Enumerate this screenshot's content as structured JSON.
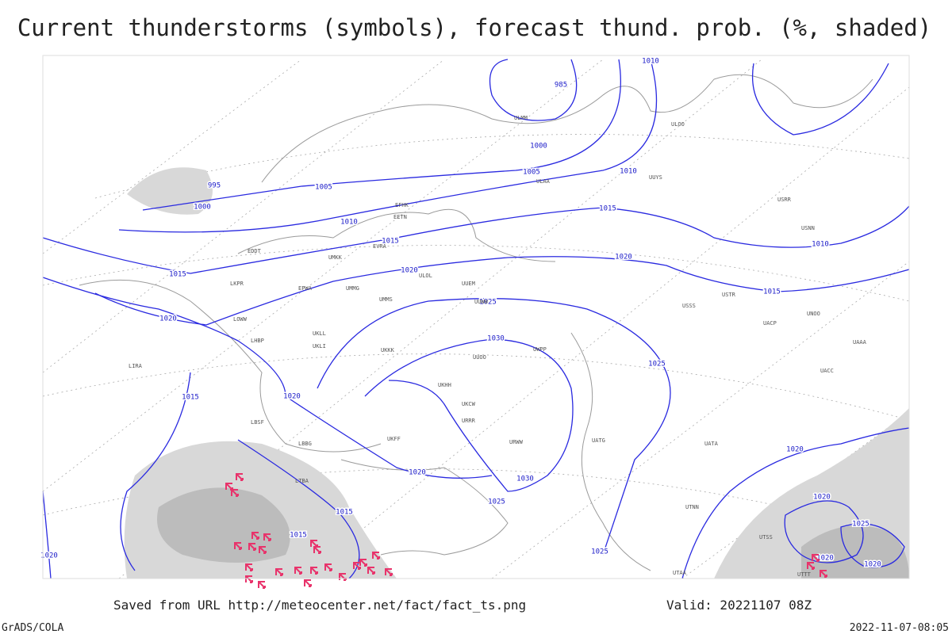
{
  "header": {
    "title": "Current thunderstorms (symbols), forecast thund. prob. (%, shaded)"
  },
  "isobar_labels": [
    "1010",
    "985",
    "1000",
    "1005",
    "1010",
    "995",
    "1005",
    "1000",
    "1010",
    "1015",
    "1015",
    "1020",
    "1010",
    "1015",
    "1020",
    "1015",
    "1020",
    "1025",
    "1030",
    "1025",
    "1015",
    "1020",
    "1020",
    "1030",
    "1025",
    "1015",
    "1015",
    "1020",
    "1020",
    "1025",
    "1020",
    "1020",
    "1025",
    "1020"
  ],
  "station_labels": [
    "ULMM",
    "ULOO",
    "ULAA",
    "UUYS",
    "EFHK",
    "EETN",
    "EVRA",
    "EDDT",
    "UMKK",
    "ULOL",
    "EPWA",
    "UMMG",
    "UUEM",
    "UUWW",
    "UMMS",
    "LKPR",
    "LOWW",
    "LHBP",
    "UKLL",
    "UKLI",
    "UKKK",
    "LIRA",
    "UUOO",
    "UWPP",
    "UKHH",
    "UKCW",
    "URRR",
    "LBSF",
    "LBBG",
    "LTBA",
    "UKFF",
    "URWW",
    "UATG",
    "USSS",
    "USTR",
    "UACP",
    "UACC",
    "UAAA",
    "UATA",
    "UTNN",
    "UTAA",
    "UTSS",
    "UTTT",
    "USRR",
    "USNN",
    "UNOO"
  ],
  "footer": {
    "source": "Saved from URL http://meteocenter.net/fact/fact_ts.png",
    "valid": "Valid: 20221107 08Z",
    "software": "GrADS/COLA",
    "timestamp": "2022-11-07-08:05"
  }
}
